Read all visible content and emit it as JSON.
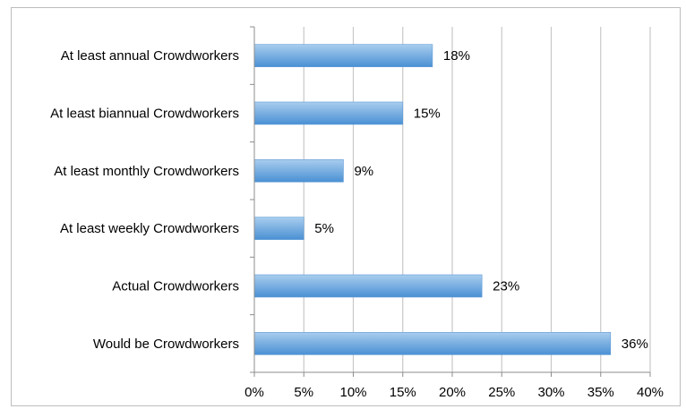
{
  "chart_data": {
    "type": "bar",
    "orientation": "horizontal",
    "categories": [
      "At least annual Crowdworkers",
      "At least biannual Crowdworkers",
      "At least monthly Crowdworkers",
      "At least weekly Crowdworkers",
      "Actual Crowdworkers",
      "Would be Crowdworkers"
    ],
    "values": [
      18,
      15,
      9,
      5,
      23,
      36
    ],
    "data_labels": [
      "18%",
      "15%",
      "9%",
      "5%",
      "23%",
      "36%"
    ],
    "x_ticks": [
      "0%",
      "5%",
      "10%",
      "15%",
      "20%",
      "25%",
      "30%",
      "35%",
      "40%"
    ],
    "xlim": [
      0,
      40
    ],
    "grid": true,
    "legend": false,
    "colors": {
      "bar_light": "#a9cdee",
      "bar_dark": "#4a90d4",
      "grid": "#c8c8c8",
      "axis": "#8c8c8c"
    }
  }
}
